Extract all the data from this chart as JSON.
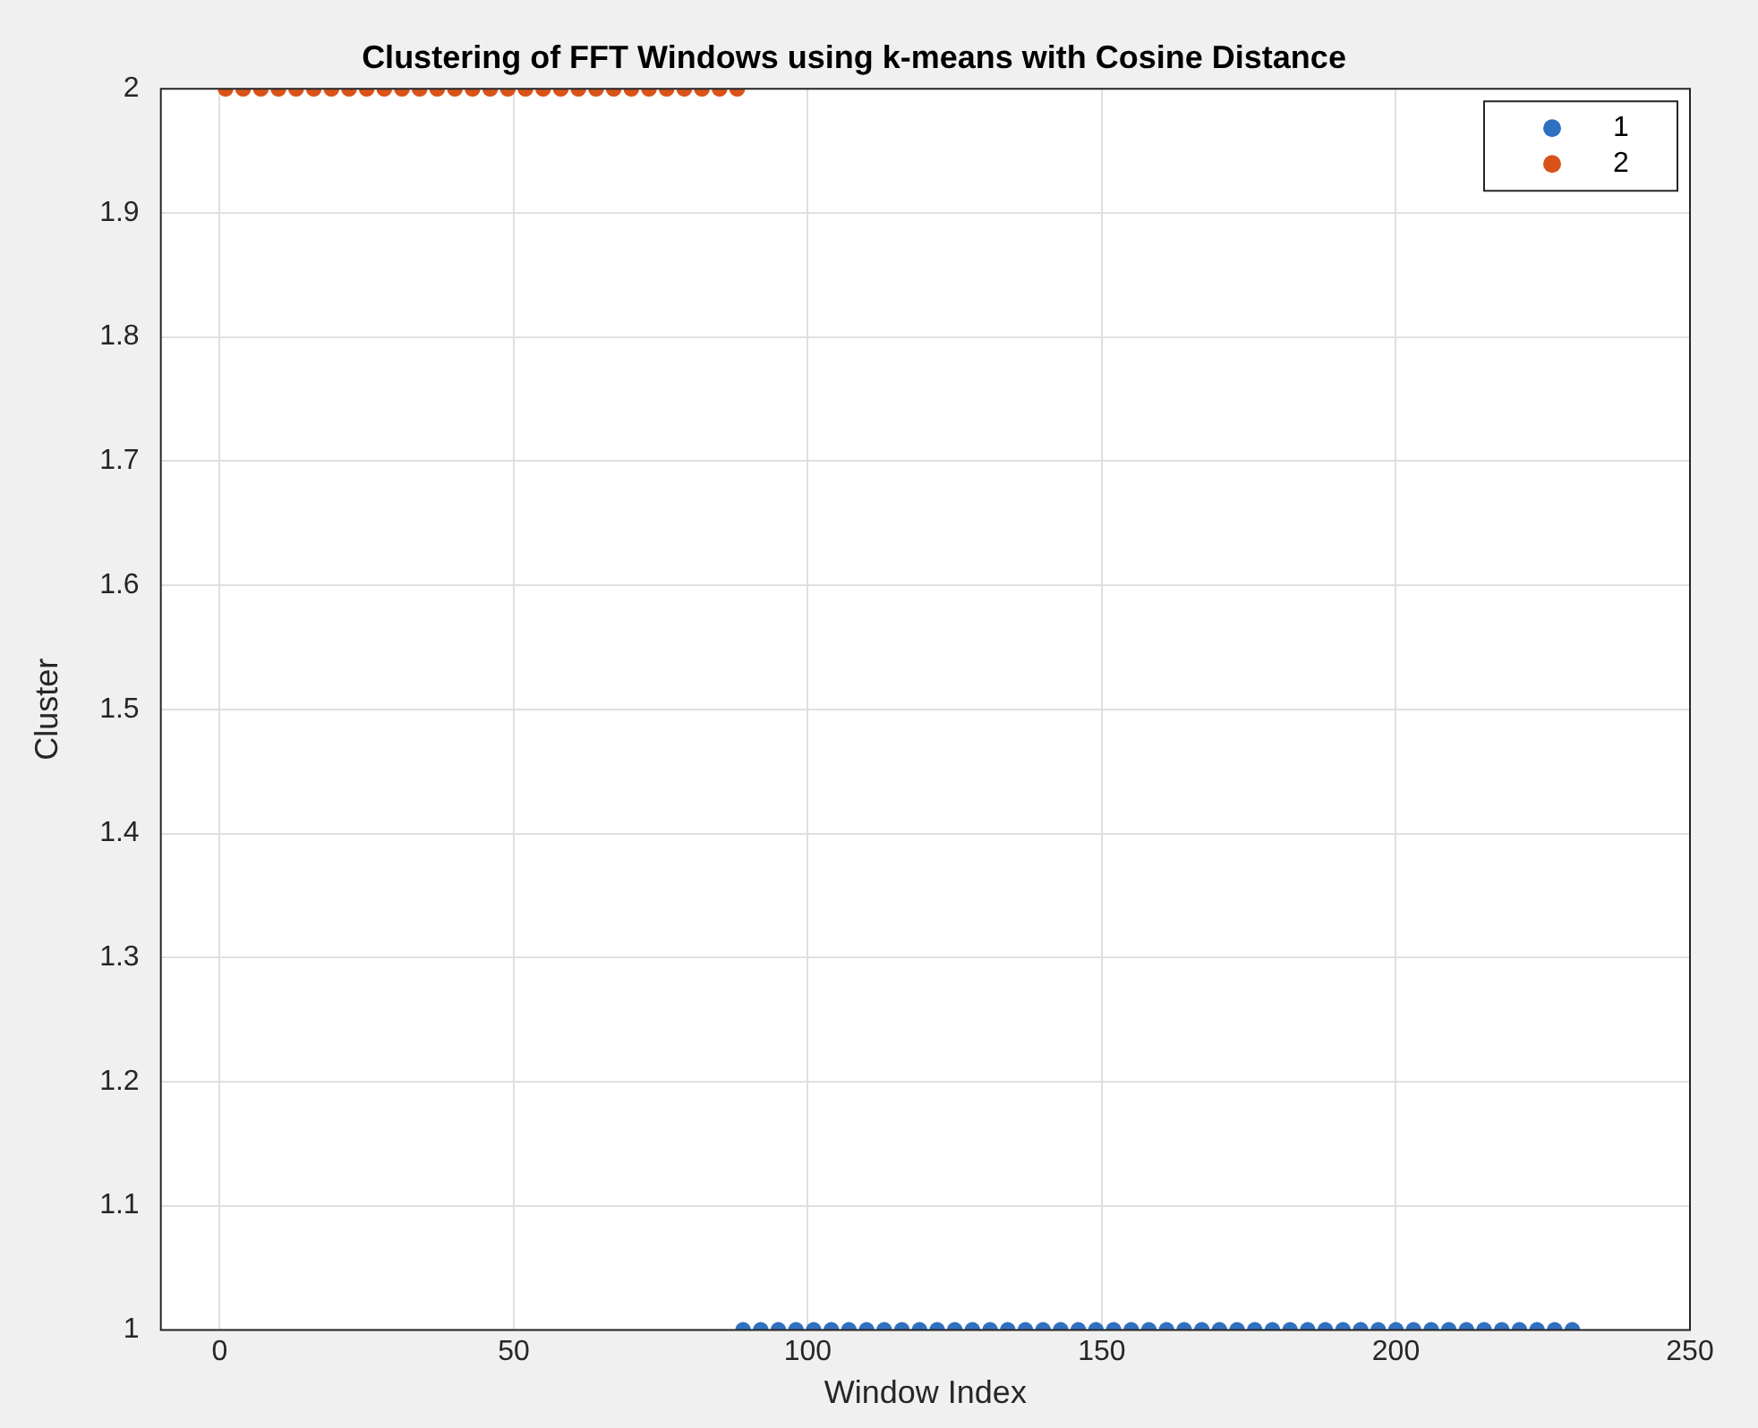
{
  "chart_data": {
    "type": "scatter",
    "title": "Clustering of FFT Windows using k-means with Cosine Distance",
    "xlabel": "Window Index",
    "ylabel": "Cluster",
    "xlim": [
      -10,
      250
    ],
    "xticks": [
      0,
      50,
      100,
      150,
      200,
      250
    ],
    "ylim": [
      1,
      2
    ],
    "yticks": [
      1,
      1.1,
      1.2,
      1.3,
      1.4,
      1.5,
      1.6,
      1.7,
      1.8,
      1.9,
      2
    ],
    "grid": true,
    "legend": "top right",
    "marker": "circle",
    "series": [
      {
        "name": "1",
        "color": "#3070c0",
        "x": [
          89,
          92,
          95,
          98,
          101,
          104,
          107,
          110,
          113,
          116,
          119,
          122,
          125,
          128,
          131,
          134,
          137,
          140,
          143,
          146,
          149,
          152,
          155,
          158,
          161,
          164,
          167,
          170,
          173,
          176,
          179,
          182,
          185,
          188,
          191,
          194,
          197,
          200,
          203,
          206,
          209,
          212,
          215,
          218,
          221,
          224,
          227,
          230
        ],
        "values": [
          1,
          1,
          1,
          1,
          1,
          1,
          1,
          1,
          1,
          1,
          1,
          1,
          1,
          1,
          1,
          1,
          1,
          1,
          1,
          1,
          1,
          1,
          1,
          1,
          1,
          1,
          1,
          1,
          1,
          1,
          1,
          1,
          1,
          1,
          1,
          1,
          1,
          1,
          1,
          1,
          1,
          1,
          1,
          1,
          1,
          1,
          1,
          1
        ]
      },
      {
        "name": "2",
        "color": "#d95319",
        "x": [
          1,
          4,
          7,
          10,
          13,
          16,
          19,
          22,
          25,
          28,
          31,
          34,
          37,
          40,
          43,
          46,
          49,
          52,
          55,
          58,
          61,
          64,
          67,
          70,
          73,
          76,
          79,
          82,
          85,
          88
        ],
        "values": [
          2,
          2,
          2,
          2,
          2,
          2,
          2,
          2,
          2,
          2,
          2,
          2,
          2,
          2,
          2,
          2,
          2,
          2,
          2,
          2,
          2,
          2,
          2,
          2,
          2,
          2,
          2,
          2,
          2,
          2
        ]
      }
    ]
  }
}
